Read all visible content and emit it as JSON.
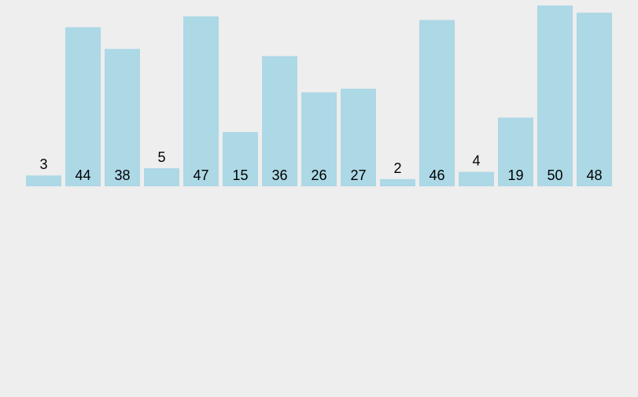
{
  "chart_data": {
    "type": "bar",
    "values": [
      3,
      44,
      38,
      5,
      47,
      15,
      36,
      26,
      27,
      2,
      46,
      4,
      19,
      50,
      48
    ],
    "labels": [
      "3",
      "44",
      "38",
      "5",
      "47",
      "15",
      "36",
      "26",
      "27",
      "2",
      "46",
      "4",
      "19",
      "50",
      "48"
    ],
    "ylim": [
      0,
      50
    ],
    "grid": false,
    "bar_color": "#add8e6",
    "background_color": "#eeeeee",
    "label_color": "#000000"
  }
}
